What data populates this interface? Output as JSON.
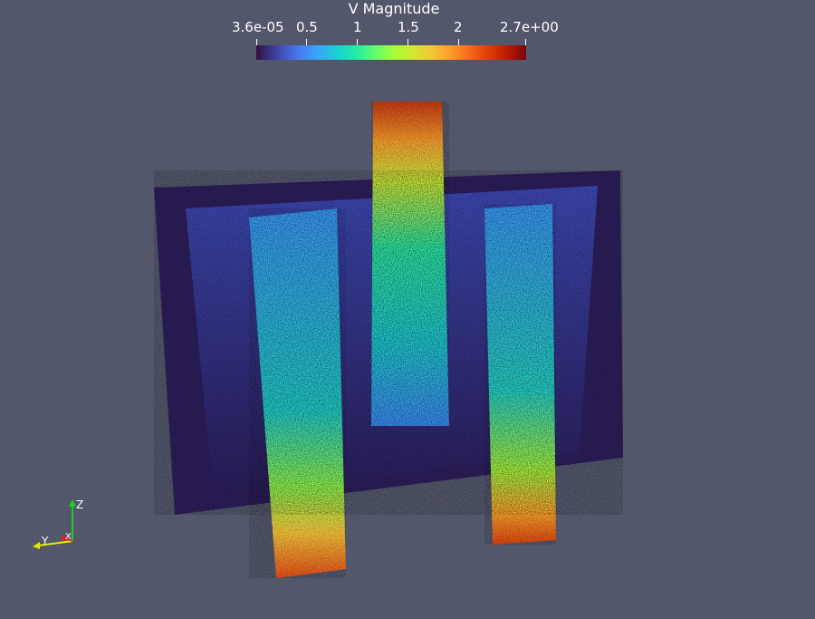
{
  "colorbar": {
    "title": "V Magnitude",
    "ticks": [
      "3.6e-05",
      "0.5",
      "1",
      "1.5",
      "2",
      "2.7e+00"
    ]
  },
  "orientation_axes": {
    "z_label": "Z",
    "y_label": "Y",
    "x_label": "X"
  },
  "colors": {
    "background": "#52576b",
    "axis_z": "#22cc22",
    "axis_y": "#e6e600",
    "axis_x": "#dd2222"
  }
}
